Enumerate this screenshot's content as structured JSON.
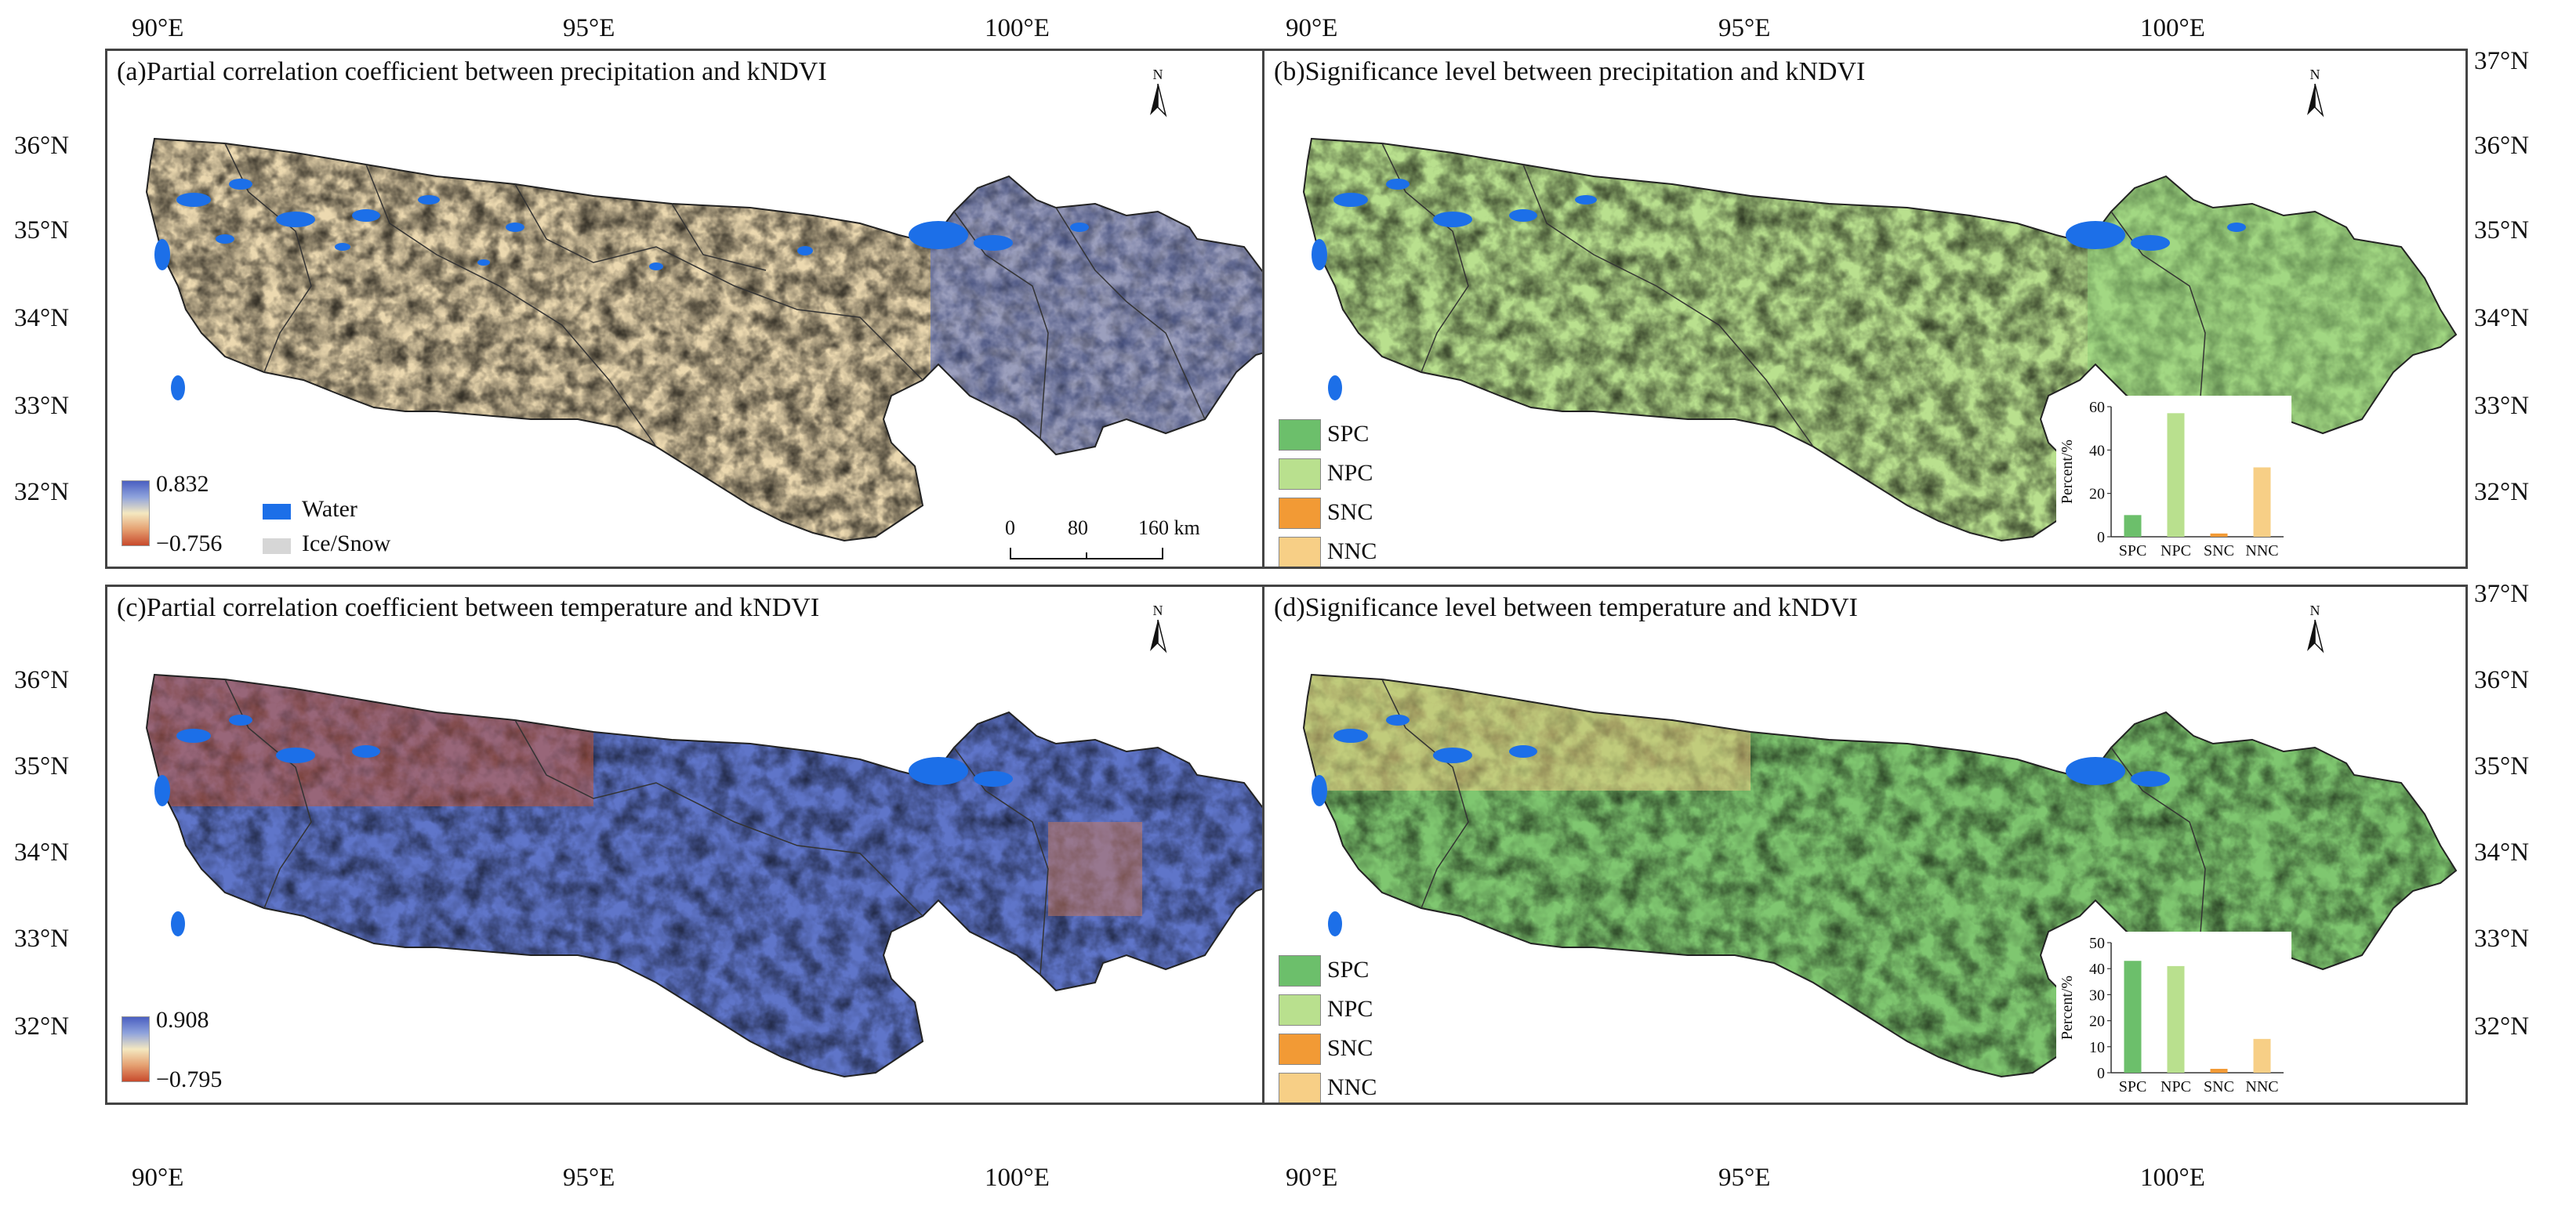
{
  "panels": {
    "a": {
      "title": "(a)Partial correlation coefficient between precipitation and kNDVI",
      "legend_max": "0.832",
      "legend_min": "−0.756"
    },
    "b": {
      "title": "(b)Significance level between precipitation and kNDVI"
    },
    "c": {
      "title": "(c)Partial correlation coefficient between temperature and kNDVI",
      "legend_max": "0.908",
      "legend_min": "−0.795"
    },
    "d": {
      "title": "(d)Significance level between temperature and kNDVI"
    }
  },
  "axes": {
    "lon_labels": [
      "90°E",
      "95°E",
      "100°E"
    ],
    "lat_labels_left": [
      "36°N",
      "35°N",
      "34°N",
      "33°N",
      "32°N"
    ],
    "lat_labels_right": [
      "37°N",
      "36°N",
      "35°N",
      "34°N",
      "33°N",
      "32°N"
    ]
  },
  "north_label": "N",
  "legend": {
    "water": "Water",
    "ice": "Ice/Snow"
  },
  "scale_bar": {
    "ticks": [
      "0",
      "80",
      "160 km"
    ]
  },
  "significance_classes": [
    "SPC",
    "NPC",
    "SNC",
    "NNC"
  ],
  "colors": {
    "SPC": "#6cbf6b",
    "NPC": "#b9e08e",
    "SNC": "#f29a35",
    "NNC": "#f7cf86",
    "water": "#1c6fe8",
    "ice": "#d6d6d6",
    "corr_positive": "#4a5fc1",
    "corr_mid": "#f4e8c0",
    "corr_negative": "#c84a2c"
  },
  "chart_data": [
    {
      "type": "bar",
      "panel": "b",
      "categories": [
        "SPC",
        "NPC",
        "SNC",
        "NNC"
      ],
      "values": [
        10,
        57,
        1.5,
        32
      ],
      "ylabel": "Percent/%",
      "ylim": [
        0,
        60
      ],
      "yticks": [
        "0",
        "20",
        "40",
        "60"
      ]
    },
    {
      "type": "bar",
      "panel": "d",
      "categories": [
        "SPC",
        "NPC",
        "SNC",
        "NNC"
      ],
      "values": [
        43,
        41,
        1.5,
        13
      ],
      "ylabel": "Percent/%",
      "ylim": [
        0,
        50
      ],
      "yticks": [
        "0",
        "10",
        "20",
        "30",
        "40",
        "50"
      ]
    }
  ]
}
